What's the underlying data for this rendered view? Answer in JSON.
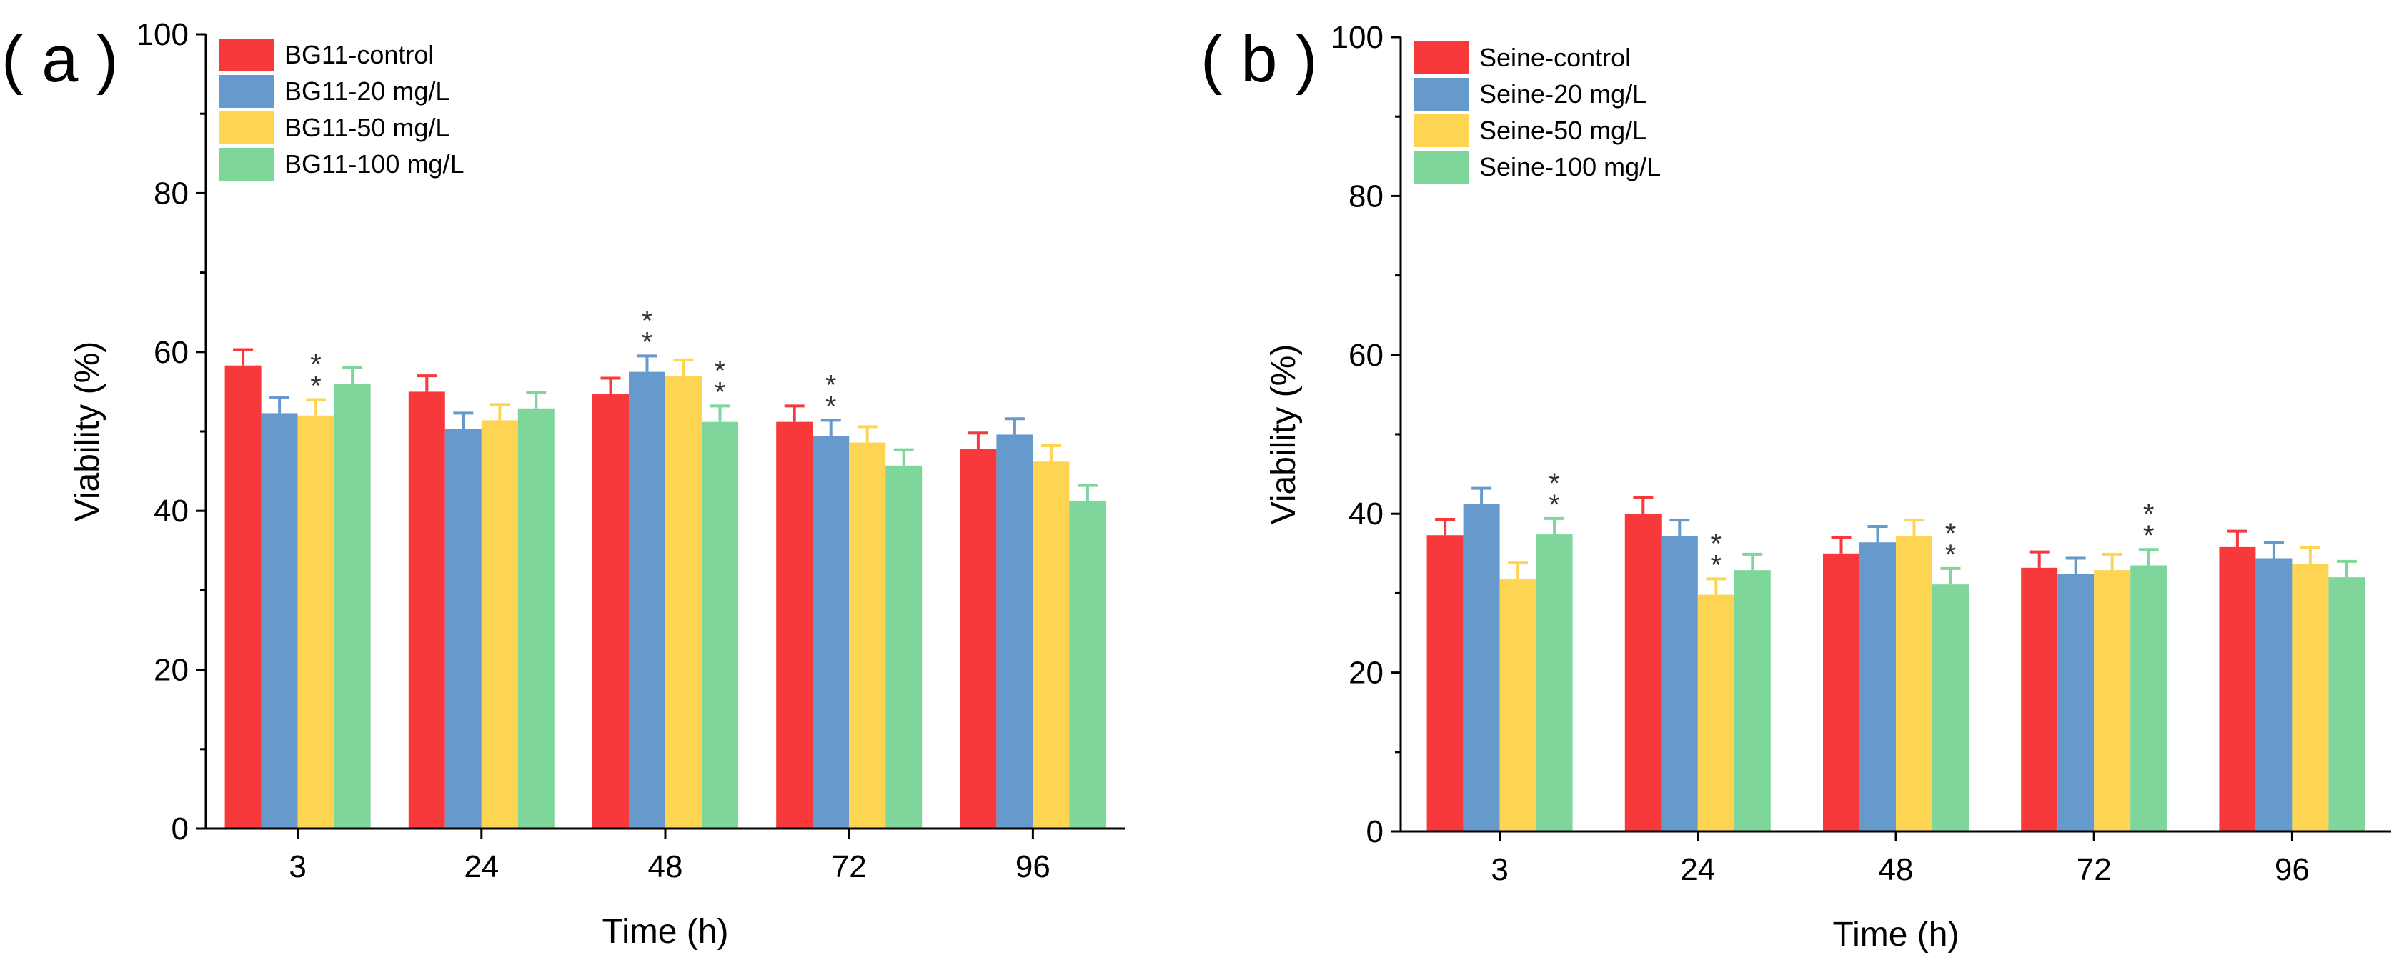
{
  "colors": {
    "control": "#f8393c",
    "c20": "#6699cc",
    "c50": "#fed453",
    "c100": "#7fd69a",
    "axis": "#000000",
    "significance": "#333333"
  },
  "chart_data": [
    {
      "panel_label": "( a )",
      "type": "bar",
      "title": "",
      "xlabel": "Time (h)",
      "ylabel": "Viability (%)",
      "ylim": [
        0,
        100
      ],
      "yticks": [
        "0",
        "20",
        "40",
        "60",
        "80",
        "100"
      ],
      "categories": [
        "3",
        "24",
        "48",
        "72",
        "96"
      ],
      "legend_position": "top-left",
      "series": [
        {
          "name": "BG11-control",
          "color_key": "control",
          "values": [
            58.3,
            55.0,
            54.7,
            51.2,
            47.8
          ],
          "errors": [
            2.0,
            2.0,
            2.0,
            2.0,
            2.0
          ]
        },
        {
          "name": "BG11-20 mg/L",
          "color_key": "c20",
          "values": [
            52.3,
            50.3,
            57.5,
            49.4,
            49.6
          ],
          "errors": [
            2.0,
            2.0,
            2.0,
            2.0,
            2.0
          ]
        },
        {
          "name": "BG11-50 mg/L",
          "color_key": "c50",
          "values": [
            52.0,
            51.4,
            57.0,
            48.6,
            46.2
          ],
          "errors": [
            2.0,
            2.0,
            2.0,
            2.0,
            2.0
          ]
        },
        {
          "name": "BG11-100 mg/L",
          "color_key": "c100",
          "values": [
            56.0,
            52.9,
            51.2,
            45.7,
            41.2
          ],
          "errors": [
            2.0,
            2.0,
            2.0,
            2.0,
            2.0
          ]
        }
      ],
      "significance": [
        {
          "category": 0,
          "series": 2,
          "mark": "**"
        },
        {
          "category": 2,
          "series": 1,
          "mark": "**"
        },
        {
          "category": 2,
          "series": 3,
          "mark": "**"
        },
        {
          "category": 3,
          "series": 1,
          "mark": "**"
        }
      ]
    },
    {
      "panel_label": "( b )",
      "type": "bar",
      "title": "",
      "xlabel": "Time (h)",
      "ylabel": "Viability (%)",
      "ylim": [
        0,
        100
      ],
      "yticks": [
        "0",
        "20",
        "40",
        "60",
        "80",
        "100"
      ],
      "categories": [
        "3",
        "24",
        "48",
        "72",
        "96"
      ],
      "legend_position": "top-left",
      "series": [
        {
          "name": "Seine-control",
          "color_key": "control",
          "values": [
            37.3,
            40.0,
            35.0,
            33.2,
            35.8
          ],
          "errors": [
            2.0,
            2.0,
            2.0,
            2.0,
            2.0
          ]
        },
        {
          "name": "Seine-20 mg/L",
          "color_key": "c20",
          "values": [
            41.2,
            37.2,
            36.4,
            32.4,
            34.4
          ],
          "errors": [
            2.0,
            2.0,
            2.0,
            2.0,
            2.0
          ]
        },
        {
          "name": "Seine-50 mg/L",
          "color_key": "c50",
          "values": [
            31.8,
            29.8,
            37.2,
            32.9,
            33.7
          ],
          "errors": [
            2.0,
            2.0,
            2.0,
            2.0,
            2.0
          ]
        },
        {
          "name": "Seine-100 mg/L",
          "color_key": "c100",
          "values": [
            37.4,
            32.9,
            31.1,
            33.5,
            32.0
          ],
          "errors": [
            2.0,
            2.0,
            2.0,
            2.0,
            2.0
          ]
        }
      ],
      "significance": [
        {
          "category": 0,
          "series": 3,
          "mark": "**"
        },
        {
          "category": 1,
          "series": 2,
          "mark": "**"
        },
        {
          "category": 2,
          "series": 3,
          "mark": "**"
        },
        {
          "category": 3,
          "series": 3,
          "mark": "**"
        }
      ]
    }
  ]
}
